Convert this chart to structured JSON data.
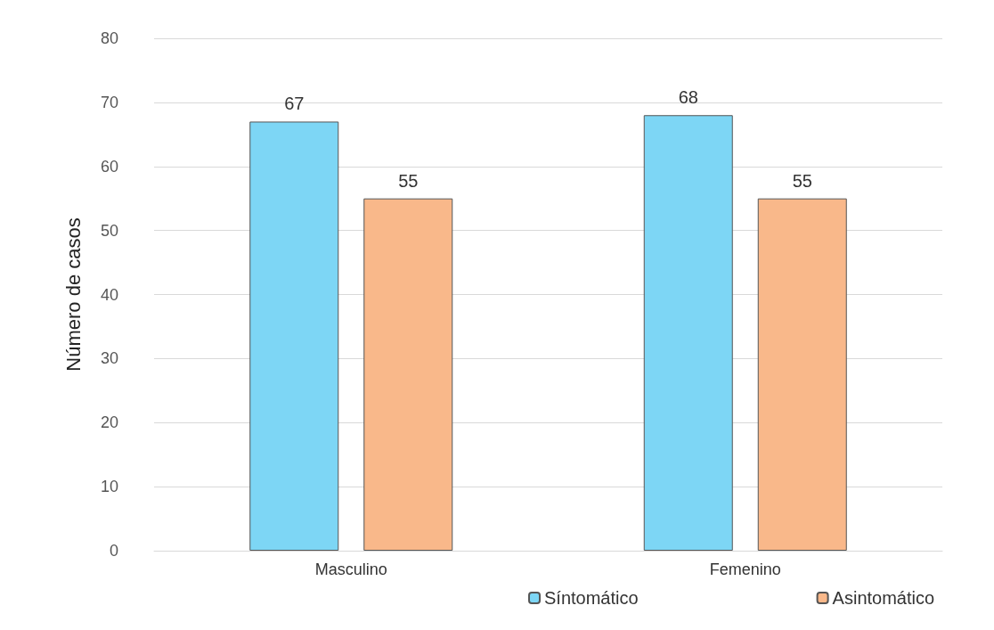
{
  "chart_data": {
    "type": "bar",
    "ylabel": "Número de casos",
    "categories": [
      "Masculino",
      "Femenino"
    ],
    "series": [
      {
        "name": "Síntomático",
        "color": "#7dd6f5",
        "values": [
          67,
          68
        ]
      },
      {
        "name": "Asintomático",
        "color": "#f9b88a",
        "values": [
          55,
          55
        ]
      }
    ],
    "ylim": [
      0,
      80
    ],
    "yticks": [
      0,
      10,
      20,
      30,
      40,
      50,
      60,
      70,
      80
    ],
    "grid": "y",
    "legend": "bottom",
    "data_labels": true
  }
}
